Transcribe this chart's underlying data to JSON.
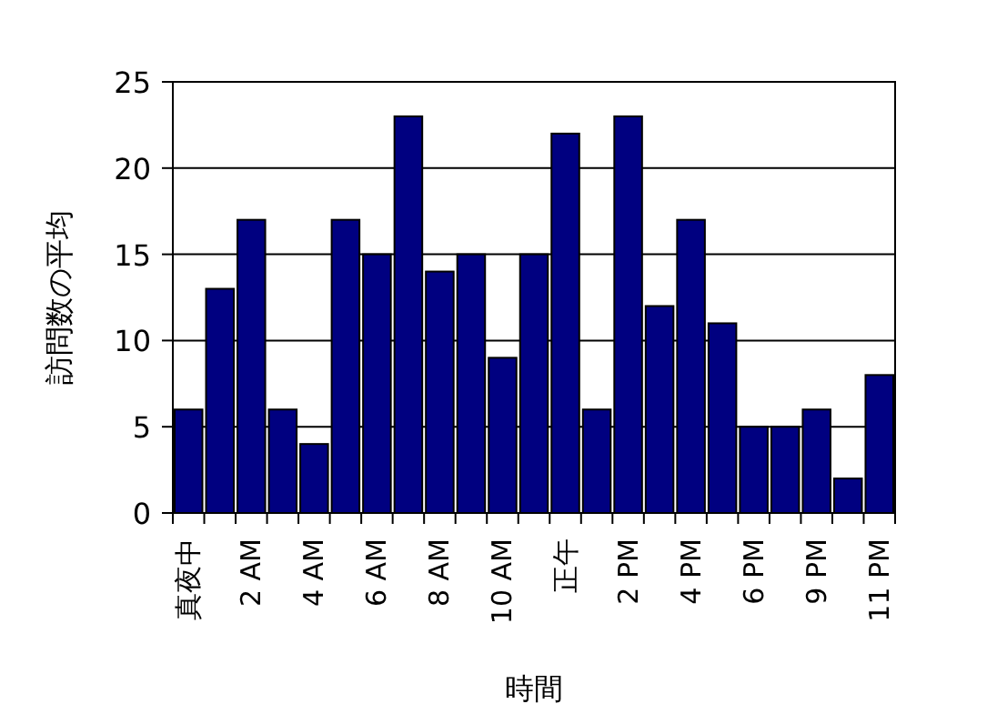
{
  "chart_data": {
    "type": "bar",
    "xlabel": "時間",
    "ylabel": "訪問数の平均",
    "categories": [
      "真夜中",
      null,
      "2 AM",
      null,
      "4 AM",
      null,
      "6 AM",
      null,
      "8 AM",
      null,
      "10 AM",
      null,
      "正午",
      null,
      "2 PM",
      null,
      "4 PM",
      null,
      "6 PM",
      null,
      "9 PM",
      null,
      "11 PM"
    ],
    "values": [
      6,
      13,
      17,
      6,
      4,
      17,
      15,
      23,
      14,
      15,
      9,
      15,
      22,
      6,
      23,
      12,
      17,
      11,
      5,
      5,
      6,
      2,
      8
    ],
    "color": "#000080",
    "ylim": [
      0,
      25
    ],
    "yticks": [
      0,
      5,
      10,
      15,
      20,
      25
    ],
    "grid": "y"
  }
}
